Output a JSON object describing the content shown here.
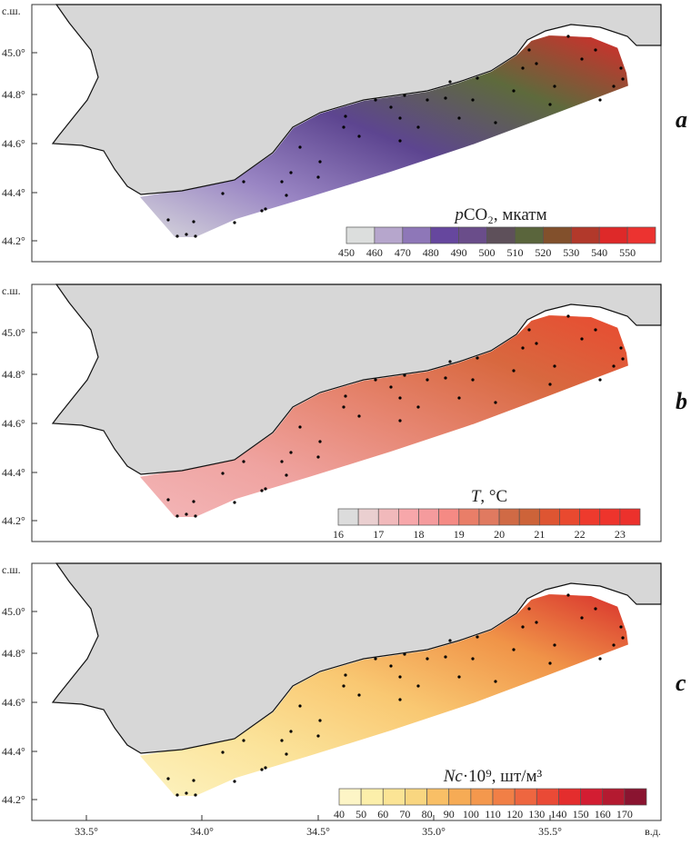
{
  "axes": {
    "lat_unit": "с.ш.",
    "lon_unit": "в.д.",
    "lat_ticks": [
      "45.0°",
      "44.8°",
      "44.6°",
      "44.4°",
      "44.2°"
    ],
    "lon_ticks": [
      "33.5°",
      "34.0°",
      "34.5°",
      "35.0°",
      "35.5°"
    ]
  },
  "panels": [
    {
      "letter": "a",
      "legend_title_italic": "p",
      "legend_title": "CO₂, мкатм",
      "ticks": [
        "450",
        "460",
        "470",
        "480",
        "490",
        "500",
        "510",
        "520",
        "530",
        "540",
        "550"
      ],
      "colors": [
        "#dcdedd",
        "#b6a6cc",
        "#8e77b8",
        "#66479e",
        "#6a4d8a",
        "#5e505a",
        "#5a653c",
        "#82502c",
        "#b2392b",
        "#de2929",
        "#ec3330"
      ],
      "fill": [
        "#d8d8dc",
        "#9a86c4",
        "#5d4590",
        "#5e6a3c",
        "#d92a2a"
      ]
    },
    {
      "letter": "b",
      "legend_title_italic": "T",
      "legend_title": ", °C",
      "ticks": [
        "16",
        "17",
        "18",
        "19",
        "20",
        "21",
        "22",
        "23"
      ],
      "colors": [
        "#dcdcdc",
        "#eacfd0",
        "#f1b9bb",
        "#f7a7aa",
        "#f59b9d",
        "#f58a84",
        "#e97e68",
        "#e07a60",
        "#d06a45",
        "#cd6339",
        "#de5532",
        "#e9492f",
        "#ee3a2d",
        "#ee342c",
        "#ec312c"
      ],
      "fill": [
        "#f3b6b8",
        "#efa3a0",
        "#e68570",
        "#d8683f",
        "#e94a30"
      ]
    },
    {
      "letter": "c",
      "legend_title_italic": "Nc",
      "legend_title": "·10⁹, шт/м³",
      "ticks": [
        "40",
        "50",
        "60",
        "70",
        "80",
        "90",
        "100",
        "110",
        "120",
        "130",
        "140",
        "150",
        "160",
        "170"
      ],
      "colors": [
        "#fdf5c6",
        "#fcefaa",
        "#fbe495",
        "#f9d680",
        "#f9bf66",
        "#f6ab55",
        "#f4984d",
        "#f17f46",
        "#ee6640",
        "#ea4a36",
        "#e42d2d",
        "#d31d32",
        "#b41a30",
        "#8a1430"
      ],
      "fill": [
        "#fdf3c0",
        "#fbe39a",
        "#f9c872",
        "#f09448",
        "#d8302c"
      ]
    }
  ]
}
